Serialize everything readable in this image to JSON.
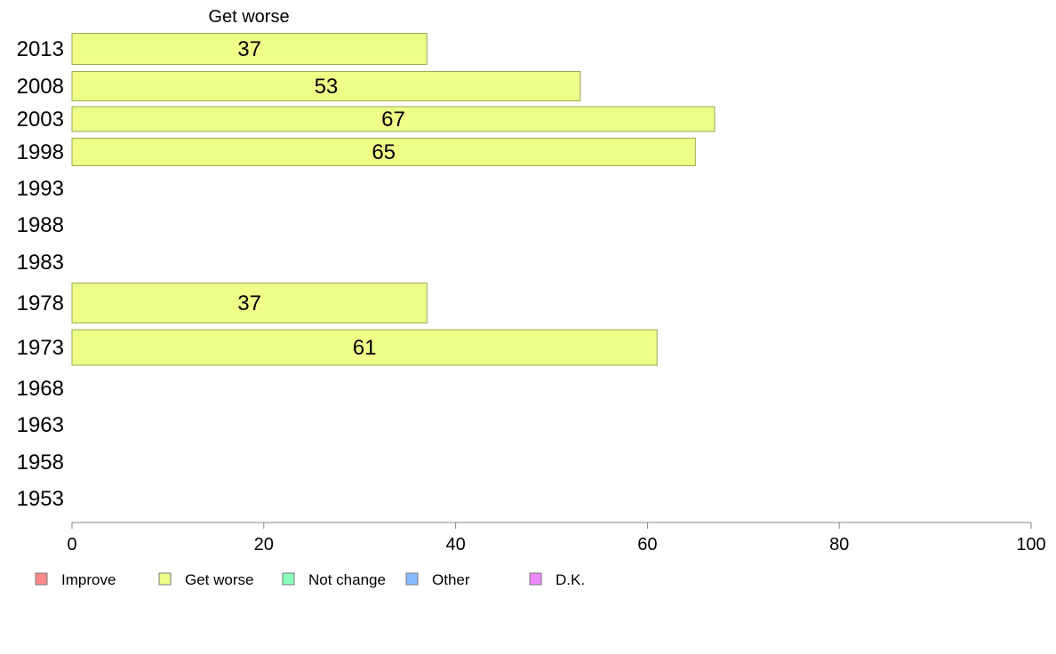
{
  "chart_data": {
    "type": "bar",
    "orientation": "horizontal",
    "panel_title": "Get worse",
    "categories": [
      "2013",
      "2008",
      "2003",
      "1998",
      "1993",
      "1988",
      "1983",
      "1978",
      "1973",
      "1968",
      "1963",
      "1958",
      "1953"
    ],
    "values": [
      37,
      53,
      67,
      65,
      null,
      null,
      null,
      37,
      61,
      null,
      null,
      null,
      null
    ],
    "data_labels": [
      "37",
      "53",
      "67",
      "65",
      "",
      "",
      "",
      "37",
      "61",
      "",
      "",
      "",
      ""
    ],
    "xlim": [
      0,
      100
    ],
    "xticks": [
      0,
      20,
      40,
      60,
      80,
      100
    ],
    "grid": false,
    "bar_color": "#eeff88",
    "bar_border_color": "#99aa55",
    "legend_position": "bottom-left",
    "legend": [
      {
        "label": "Improve",
        "color": "#ff8888"
      },
      {
        "label": "Get worse",
        "color": "#eeff88"
      },
      {
        "label": "Not change",
        "color": "#88ffbb"
      },
      {
        "label": "Other",
        "color": "#88bbff"
      },
      {
        "label": "D.K.",
        "color": "#ee88ff"
      }
    ]
  }
}
